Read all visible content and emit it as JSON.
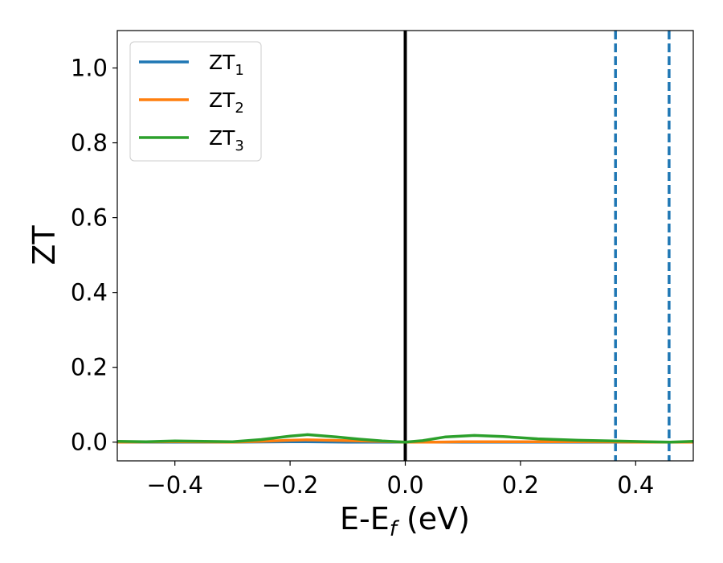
{
  "chart_data": {
    "type": "line",
    "xlabel": "E-E",
    "xlabel_sub": "f",
    "xlabel_unit": " (eV)",
    "ylabel": "ZT",
    "xlim": [
      -0.5,
      0.5
    ],
    "ylim": [
      -0.05,
      1.1
    ],
    "xticks": [
      -0.4,
      -0.2,
      0.0,
      0.2,
      0.4
    ],
    "xtick_labels": [
      "−0.4",
      "−0.2",
      "0.0",
      "0.2",
      "0.4"
    ],
    "yticks": [
      0.0,
      0.2,
      0.4,
      0.6,
      0.8,
      1.0
    ],
    "ytick_labels": [
      "0.0",
      "0.2",
      "0.4",
      "0.6",
      "0.8",
      "1.0"
    ],
    "grid": false,
    "legend_position": "top-left",
    "vlines": [
      {
        "x": 0.0,
        "style": "solid",
        "color": "#000000"
      },
      {
        "x": 0.365,
        "style": "dashed",
        "color": "#1f77b4"
      },
      {
        "x": 0.458,
        "style": "dashed",
        "color": "#1f77b4"
      }
    ],
    "series": [
      {
        "name": "ZT",
        "name_sub": "1",
        "color": "#1f77b4",
        "x": [
          -0.5,
          -0.4,
          -0.3,
          -0.2,
          -0.17,
          -0.1,
          0.0,
          0.1,
          0.2,
          0.3,
          0.4,
          0.5
        ],
        "y": [
          0.0,
          0.0,
          0.0,
          0.001,
          0.001,
          0.0,
          0.0,
          0.0,
          0.0,
          0.0,
          0.0,
          0.0
        ]
      },
      {
        "name": "ZT",
        "name_sub": "2",
        "color": "#ff7f0e",
        "x": [
          -0.5,
          -0.4,
          -0.3,
          -0.25,
          -0.2,
          -0.17,
          -0.1,
          -0.05,
          0.0,
          0.05,
          0.1,
          0.2,
          0.3,
          0.4,
          0.5
        ],
        "y": [
          0.0,
          0.001,
          0.0,
          0.002,
          0.005,
          0.006,
          0.004,
          0.002,
          0.0,
          0.0,
          0.001,
          0.001,
          0.001,
          0.0,
          0.0
        ]
      },
      {
        "name": "ZT",
        "name_sub": "3",
        "color": "#2ca02c",
        "x": [
          -0.5,
          -0.45,
          -0.4,
          -0.35,
          -0.3,
          -0.25,
          -0.2,
          -0.17,
          -0.12,
          -0.08,
          -0.04,
          0.0,
          0.03,
          0.07,
          0.12,
          0.17,
          0.23,
          0.3,
          0.36,
          0.42,
          0.46,
          0.5
        ],
        "y": [
          0.002,
          0.001,
          0.003,
          0.002,
          0.001,
          0.007,
          0.016,
          0.02,
          0.014,
          0.008,
          0.003,
          0.0,
          0.004,
          0.014,
          0.018,
          0.015,
          0.009,
          0.005,
          0.003,
          0.001,
          0.0,
          0.002
        ]
      }
    ]
  }
}
